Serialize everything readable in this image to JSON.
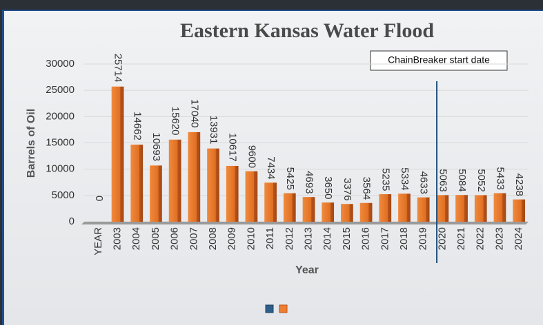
{
  "chart_data": {
    "type": "bar",
    "title": "Eastern Kansas Water Flood",
    "y_label": "Barrels of Oil",
    "x_label": "Year",
    "annotation": "ChainBreaker start date",
    "categories": [
      "YEAR",
      "2003",
      "2004",
      "2005",
      "2006",
      "2007",
      "2008",
      "2009",
      "2010",
      "2011",
      "2012",
      "2013",
      "2014",
      "2015",
      "2016",
      "2017",
      "2018",
      "2019",
      "2020",
      "2021",
      "2022",
      "2023",
      "2024"
    ],
    "values": [
      0,
      25714,
      14662,
      10693,
      15620,
      17040,
      13931,
      10617,
      9600,
      7434,
      5425,
      4693,
      3650,
      3376,
      3564,
      5235,
      5334,
      4633,
      5063,
      5084,
      5052,
      5433,
      4238
    ],
    "color": "#ed7d31",
    "legend_colors": [
      "#2e5f8a",
      "#ed7d31"
    ],
    "ylim": [
      0,
      30000
    ],
    "yticks": [
      0,
      5000,
      10000,
      15000,
      20000,
      25000,
      30000
    ],
    "grid": true
  }
}
